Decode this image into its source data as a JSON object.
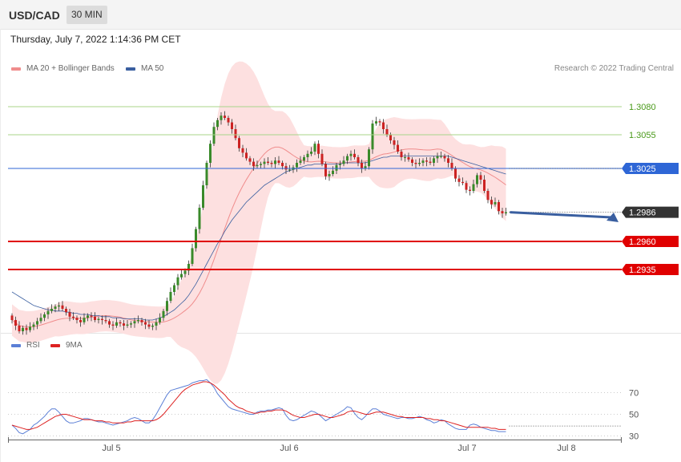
{
  "header": {
    "symbol": "USD/CAD",
    "timeframe": "30 MIN"
  },
  "datetime": "Thursday, July 7, 2022 1:14:36 PM CET",
  "legend_main": [
    {
      "label": "MA 20 + Bollinger Bands",
      "color": "#f08c8c"
    },
    {
      "label": "MA 50",
      "color": "#3a5fa0"
    }
  ],
  "copyright": "Research © 2022 Trading Central",
  "legend_rsi": [
    {
      "label": "RSI",
      "color": "#5b7fd6"
    },
    {
      "label": "9MA",
      "color": "#dd2222"
    }
  ],
  "chart_data": [
    {
      "type": "candlestick",
      "ylim": [
        1.2875,
        1.309
      ],
      "x_ticks": [
        "Jul 5",
        "Jul 6",
        "Jul 7",
        "Jul 8"
      ],
      "levels": [
        {
          "value": 1.308,
          "label": "1.3080",
          "kind": "resistance"
        },
        {
          "value": 1.3055,
          "label": "1.3055",
          "kind": "resistance"
        },
        {
          "value": 1.3025,
          "label": "1.3025",
          "kind": "pivot"
        },
        {
          "value": 1.2986,
          "label": "1.2986",
          "kind": "last"
        },
        {
          "value": 1.296,
          "label": "1.2960",
          "kind": "support"
        },
        {
          "value": 1.2935,
          "label": "1.2935",
          "kind": "support"
        }
      ],
      "candle_period_min": 30,
      "closes": [
        1.289,
        1.2885,
        1.288,
        1.2883,
        1.2881,
        1.2884,
        1.2886,
        1.2889,
        1.2892,
        1.2895,
        1.2898,
        1.29,
        1.2902,
        1.2903,
        1.29,
        1.2897,
        1.2893,
        1.2892,
        1.289,
        1.2888,
        1.2892,
        1.2894,
        1.2893,
        1.289,
        1.2891,
        1.289,
        1.2889,
        1.2886,
        1.2885,
        1.2888,
        1.2887,
        1.2885,
        1.2886,
        1.2887,
        1.2889,
        1.289,
        1.2888,
        1.2886,
        1.2884,
        1.2885,
        1.2888,
        1.2892,
        1.2898,
        1.2907,
        1.2915,
        1.2921,
        1.2928,
        1.2931,
        1.2934,
        1.294,
        1.2954,
        1.2971,
        1.299,
        1.301,
        1.303,
        1.3047,
        1.3062,
        1.3068,
        1.3072,
        1.307,
        1.3066,
        1.306,
        1.3052,
        1.3043,
        1.3039,
        1.3034,
        1.3031,
        1.3027,
        1.3028,
        1.3029,
        1.3031,
        1.303,
        1.3029,
        1.3032,
        1.303,
        1.3027,
        1.3024,
        1.3024,
        1.3026,
        1.303,
        1.3032,
        1.3035,
        1.3038,
        1.304,
        1.3047,
        1.3038,
        1.3029,
        1.3018,
        1.302,
        1.3023,
        1.3028,
        1.3029,
        1.3032,
        1.3036,
        1.3038,
        1.3035,
        1.303,
        1.3025,
        1.3027,
        1.3042,
        1.3065,
        1.3067,
        1.3066,
        1.306,
        1.3055,
        1.305,
        1.3046,
        1.304,
        1.3035,
        1.3035,
        1.3033,
        1.303,
        1.3029,
        1.303,
        1.3032,
        1.3031,
        1.303,
        1.3034,
        1.3036,
        1.3036,
        1.3034,
        1.303,
        1.3025,
        1.3016,
        1.3013,
        1.3012,
        1.3006,
        1.3005,
        1.3011,
        1.3019,
        1.3015,
        1.3005,
        1.2997,
        1.2993,
        1.2995,
        1.2987,
        1.2985,
        1.2986
      ],
      "ma50": [
        1.2915,
        1.2913,
        1.2911,
        1.2909,
        1.2907,
        1.2905,
        1.2903,
        1.2902,
        1.2901,
        1.29,
        1.2899,
        1.2899,
        1.2898,
        1.2898,
        1.2898,
        1.2897,
        1.2897,
        1.2896,
        1.2896,
        1.2895,
        1.2895,
        1.2895,
        1.2894,
        1.2894,
        1.2894,
        1.2893,
        1.2893,
        1.2893,
        1.2892,
        1.2892,
        1.2892,
        1.2891,
        1.2891,
        1.2891,
        1.2891,
        1.2891,
        1.2891,
        1.289,
        1.289,
        1.289,
        1.2891,
        1.2892,
        1.2893,
        1.2895,
        1.2897,
        1.2899,
        1.2902,
        1.2905,
        1.2908,
        1.2912,
        1.2917,
        1.2922,
        1.2928,
        1.2934,
        1.294,
        1.2946,
        1.2952,
        1.2958,
        1.2963,
        1.2969,
        1.2974,
        1.2979,
        1.2983,
        1.2987,
        1.2991,
        1.2995,
        1.2998,
        1.3001,
        1.3004,
        1.3007,
        1.301,
        1.3012,
        1.3014,
        1.3016,
        1.3018,
        1.302,
        1.3022,
        1.3023,
        1.3024,
        1.3025,
        1.3026,
        1.3027,
        1.3028,
        1.3028,
        1.3029,
        1.3029,
        1.3029,
        1.3029,
        1.3029,
        1.3029,
        1.3029,
        1.3029,
        1.303,
        1.303,
        1.303,
        1.303,
        1.303,
        1.303,
        1.303,
        1.3031,
        1.3032,
        1.3033,
        1.3034,
        1.3035,
        1.3035,
        1.3036,
        1.3036,
        1.3036,
        1.3036,
        1.3036,
        1.3036,
        1.3036,
        1.3036,
        1.3036,
        1.3036,
        1.3036,
        1.3036,
        1.3036,
        1.3036,
        1.3036,
        1.3036,
        1.3036,
        1.3035,
        1.3034,
        1.3033,
        1.3032,
        1.3031,
        1.303,
        1.3029,
        1.3028,
        1.3027,
        1.3026,
        1.3025,
        1.3024,
        1.3023,
        1.3022,
        1.3021,
        1.302
      ]
    },
    {
      "type": "line",
      "ylim": [
        20,
        90
      ],
      "y_ticks": [
        70,
        50,
        30
      ],
      "series": [
        {
          "name": "RSI",
          "values": [
            40,
            37,
            33,
            32,
            34,
            36,
            40,
            42,
            45,
            48,
            52,
            55,
            55,
            52,
            48,
            44,
            42,
            42,
            43,
            44,
            46,
            46,
            45,
            44,
            43,
            43,
            42,
            41,
            40,
            41,
            42,
            43,
            44,
            46,
            47,
            46,
            44,
            42,
            42,
            45,
            50,
            56,
            62,
            68,
            72,
            73,
            74,
            75,
            76,
            77,
            79,
            80,
            81,
            81,
            82,
            79,
            75,
            69,
            65,
            61,
            57,
            55,
            54,
            53,
            52,
            51,
            50,
            50,
            52,
            53,
            53,
            54,
            54,
            55,
            56,
            55,
            49,
            45,
            44,
            45,
            47,
            49,
            51,
            53,
            52,
            50,
            47,
            44,
            46,
            48,
            50,
            52,
            54,
            57,
            56,
            51,
            47,
            45,
            48,
            52,
            55,
            55,
            53,
            50,
            49,
            48,
            47,
            46,
            47,
            47,
            46,
            46,
            47,
            48,
            47,
            45,
            44,
            42,
            43,
            45,
            44,
            41,
            39,
            37,
            36,
            36,
            36,
            40,
            41,
            40,
            38,
            37,
            36,
            35,
            35,
            34,
            34,
            34
          ]
        },
        {
          "name": "9MA",
          "values": [
            40,
            39,
            38,
            37,
            36,
            36,
            37,
            38,
            40,
            42,
            44,
            46,
            48,
            49,
            50,
            50,
            49,
            48,
            47,
            46,
            45,
            45,
            45,
            44,
            44,
            44,
            43,
            43,
            42,
            42,
            42,
            42,
            43,
            43,
            44,
            44,
            44,
            44,
            44,
            44,
            45,
            47,
            50,
            54,
            58,
            62,
            66,
            70,
            73,
            75,
            77,
            78,
            79,
            80,
            80,
            79,
            77,
            74,
            71,
            68,
            64,
            61,
            58,
            56,
            55,
            53,
            52,
            51,
            51,
            52,
            52,
            53,
            53,
            54,
            54,
            54,
            53,
            51,
            49,
            48,
            47,
            47,
            48,
            49,
            50,
            50,
            49,
            48,
            47,
            47,
            48,
            49,
            50,
            52,
            53,
            53,
            52,
            51,
            50,
            50,
            51,
            52,
            52,
            52,
            51,
            50,
            49,
            48,
            48,
            47,
            47,
            47,
            47,
            47,
            47,
            46,
            46,
            45,
            45,
            44,
            44,
            43,
            42,
            41,
            40,
            39,
            38,
            38,
            38,
            38,
            38,
            38,
            38,
            37,
            37,
            36,
            36,
            36
          ]
        }
      ],
      "last_value_ref": 34
    }
  ]
}
